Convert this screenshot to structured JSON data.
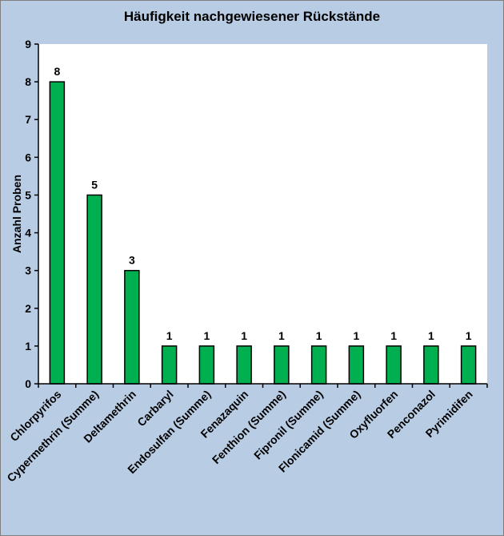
{
  "chart_data": {
    "type": "bar",
    "title": "Häufigkeit nachgewiesener Rückstände",
    "xlabel": "",
    "ylabel": "Anzahl Proben",
    "ylim": [
      0,
      9
    ],
    "yticks": [
      0,
      1,
      2,
      3,
      4,
      5,
      6,
      7,
      8,
      9
    ],
    "categories": [
      "Chlorpyrifos",
      "Cypermethrin (Summe)",
      "Deltamethrin",
      "Carbaryl",
      "Endosulfan (Summe)",
      "Fenazaquin",
      "Fenthion (Summe)",
      "Fipronil (Summe)",
      "Flonicamid (Summe)",
      "Oxyfluorfen",
      "Penconazol",
      "Pyrimidifen"
    ],
    "values": [
      8,
      5,
      3,
      1,
      1,
      1,
      1,
      1,
      1,
      1,
      1,
      1
    ],
    "data_labels": true,
    "grid": false,
    "legend": "none",
    "colors": {
      "bar": "#00b050",
      "bar_border": "#000000",
      "plot_background": "#ffffff",
      "chart_background": "#b8cce4"
    }
  }
}
